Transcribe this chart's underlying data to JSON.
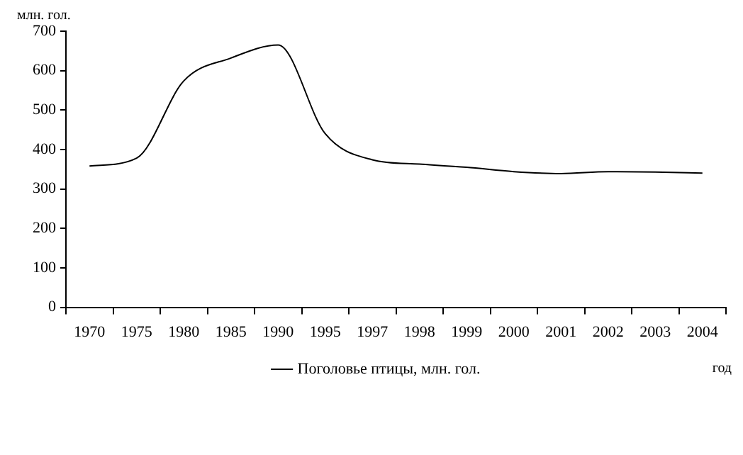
{
  "chart_data": {
    "type": "line",
    "ylabel": "млн. гол.",
    "xlabel": "год",
    "categories": [
      "1970",
      "1975",
      "1980",
      "1985",
      "1990",
      "1995",
      "1997",
      "1998",
      "1999",
      "2000",
      "2001",
      "2002",
      "2003",
      "2004"
    ],
    "series": [
      {
        "name": "Поголовье птицы, млн. гол.",
        "color": "#000000",
        "values": [
          358,
          378,
          574,
          632,
          665,
          440,
          374,
          363,
          355,
          344,
          339,
          344,
          343,
          340
        ]
      }
    ],
    "ylim": [
      0,
      700
    ],
    "yticks": [
      0,
      100,
      200,
      300,
      400,
      500,
      600,
      700
    ],
    "grid": false,
    "legend": "bottom",
    "marker": "none",
    "line_style": "solid"
  }
}
